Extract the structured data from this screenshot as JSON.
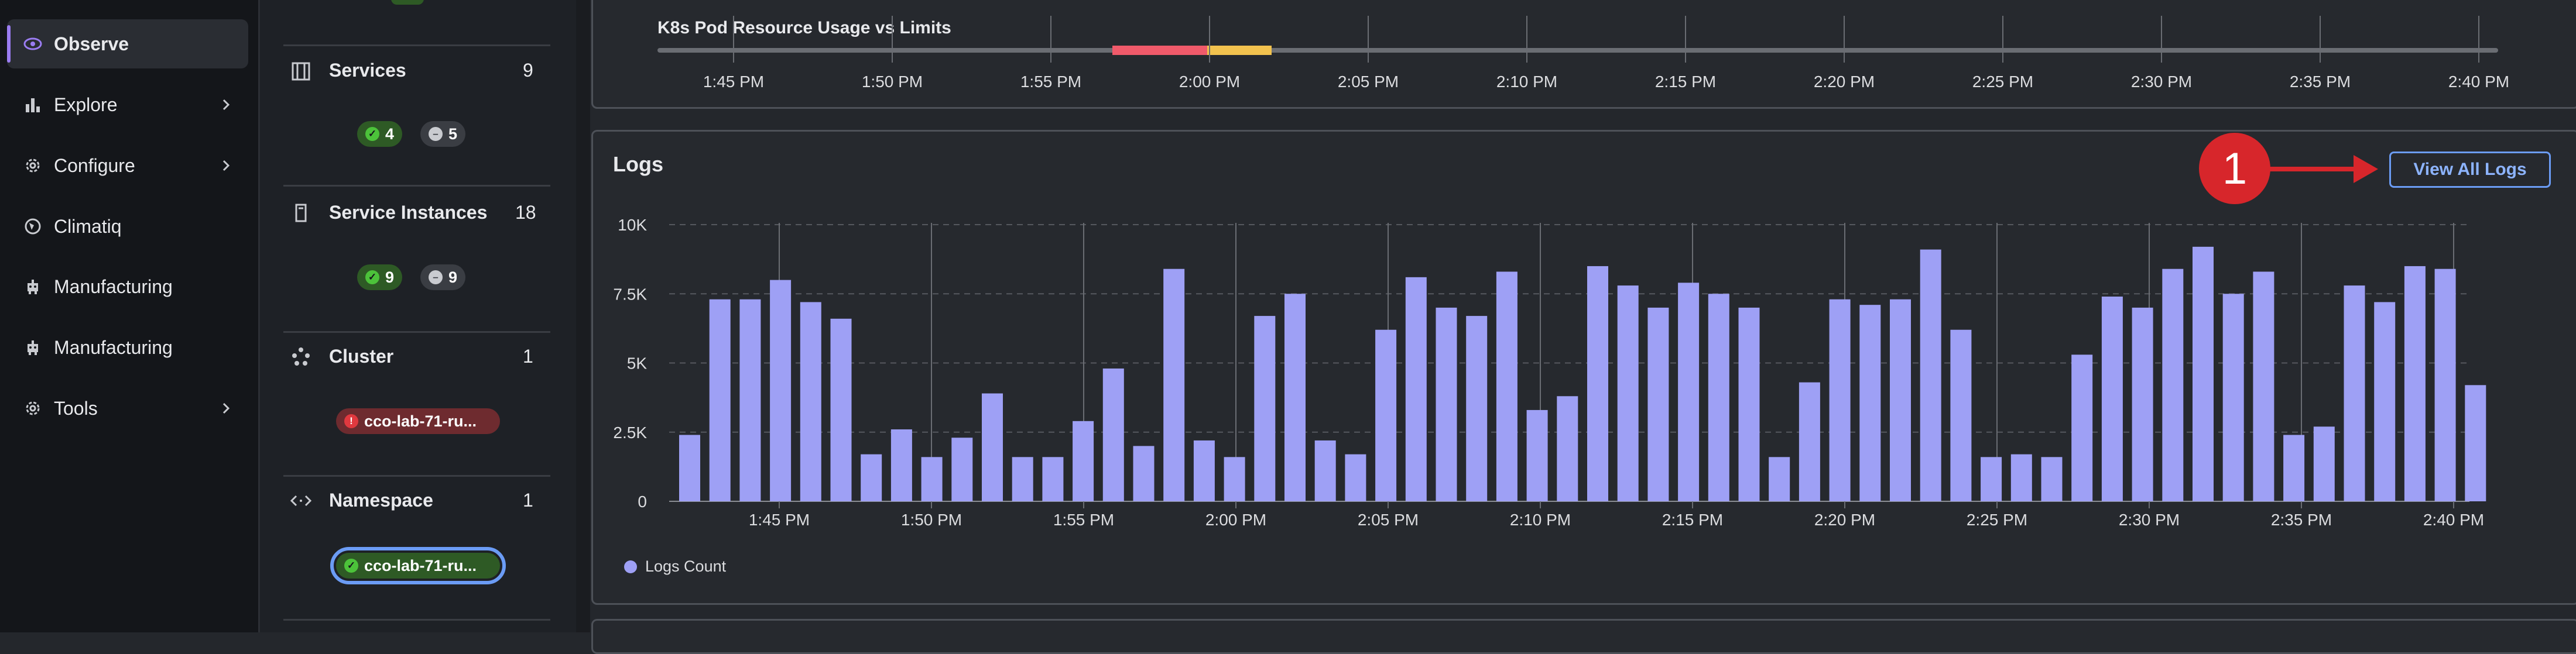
{
  "nav": {
    "items": [
      {
        "label": "Observe",
        "icon": "eye-icon",
        "active": true,
        "chevron": false
      },
      {
        "label": "Explore",
        "icon": "bar-chart-icon",
        "active": false,
        "chevron": true
      },
      {
        "label": "Configure",
        "icon": "gear-icon",
        "active": false,
        "chevron": true
      },
      {
        "label": "Climatiq",
        "icon": "globe-icon",
        "active": false,
        "chevron": false
      },
      {
        "label": "Manufacturing",
        "icon": "robot-icon",
        "active": false,
        "chevron": false
      },
      {
        "label": "Manufacturing",
        "icon": "robot-icon",
        "active": false,
        "chevron": false
      },
      {
        "label": "Tools",
        "icon": "gear-icon",
        "active": false,
        "chevron": true
      }
    ]
  },
  "entities": {
    "services": {
      "title": "Services",
      "count": "9",
      "healthy": "4",
      "unknown": "5",
      "icon": "services-icon"
    },
    "service_instances": {
      "title": "Service Instances",
      "count": "18",
      "healthy": "9",
      "unknown": "9",
      "icon": "instance-icon"
    },
    "cluster": {
      "title": "Cluster",
      "count": "1",
      "name": "cco-lab-71-ru...",
      "status": "critical",
      "icon": "cluster-icon"
    },
    "namespace": {
      "title": "Namespace",
      "count": "1",
      "name": "cco-lab-71-ru...",
      "status": "healthy",
      "icon": "namespace-icon"
    }
  },
  "timeline": {
    "title": "K8s Pod Resource Usage vs Limits",
    "ticks": [
      "1:45 PM",
      "1:50 PM",
      "1:55 PM",
      "2:00 PM",
      "2:05 PM",
      "2:10 PM",
      "2:15 PM",
      "2:20 PM",
      "2:25 PM",
      "2:30 PM",
      "2:35 PM",
      "2:40 PM"
    ],
    "colors": {
      "critical": "#f05a6a",
      "warning": "#f2c24e",
      "track": "#6a6d73"
    }
  },
  "logs": {
    "title": "Logs",
    "button_label": "View All Logs",
    "marker_label": "1"
  },
  "chart_data": {
    "type": "bar",
    "title": "Logs",
    "series": [
      {
        "name": "Logs Count",
        "color": "#9ea0f5",
        "values": [
          2400,
          7300,
          7300,
          8000,
          7200,
          6600,
          1700,
          2600,
          1600,
          2300,
          3900,
          1600,
          1600,
          2900,
          4800,
          2000,
          8400,
          2200,
          1600,
          6700,
          7500,
          2200,
          1700,
          6200,
          8100,
          7000,
          6700,
          8300,
          3300,
          3800,
          8500,
          7800,
          7000,
          7900,
          7500,
          7000,
          1600,
          4300,
          7300,
          7100,
          7300,
          9100,
          6200,
          1600,
          1700,
          1600,
          5300,
          7400,
          7000,
          8400,
          9200,
          7500,
          8300,
          2400,
          2700,
          7800,
          7200,
          8500,
          8400,
          4200
        ]
      }
    ],
    "x_ticks": [
      "1:45 PM",
      "1:50 PM",
      "1:55 PM",
      "2:00 PM",
      "2:05 PM",
      "2:10 PM",
      "2:15 PM",
      "2:20 PM",
      "2:25 PM",
      "2:30 PM",
      "2:35 PM",
      "2:40 PM"
    ],
    "y_ticks": [
      "0",
      "2.5K",
      "5K",
      "7.5K",
      "10K"
    ],
    "ylim": [
      0,
      10000
    ],
    "grid": true,
    "legend": "bottom-left"
  }
}
